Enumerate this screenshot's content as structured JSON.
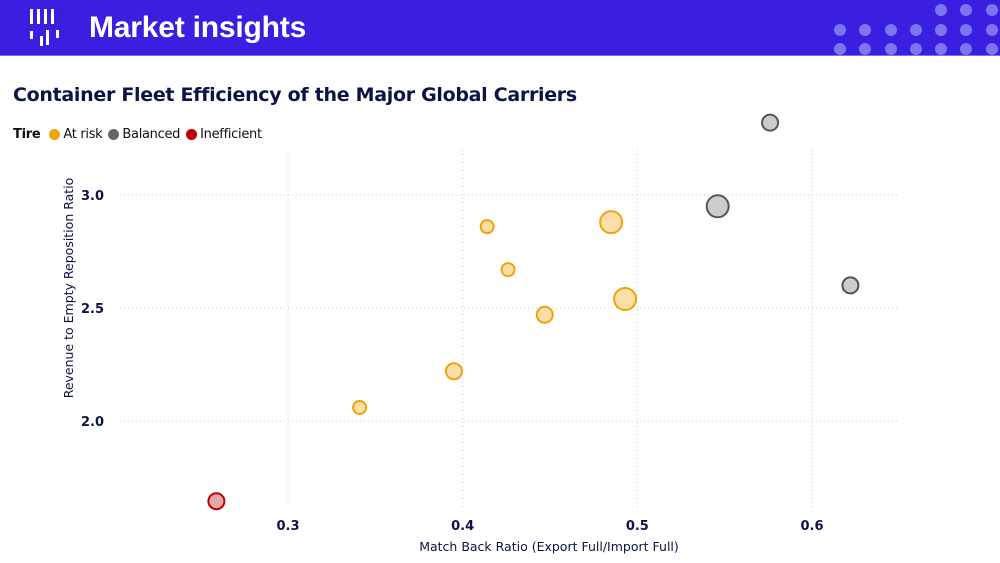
{
  "header": {
    "title": "Market insights",
    "logo_icon": "bar-chart-logo-icon",
    "background_color": "#3a1fe0"
  },
  "chart_data": {
    "type": "scatter",
    "title": "Container Fleet Efficiency of the Major Global Carriers",
    "xlabel": "Match Back Ratio (Export Full/Import Full)",
    "ylabel": "Revenue to Empty Reposition Ratio",
    "xlim": [
      0.2,
      0.65
    ],
    "ylim": [
      1.55,
      3.35
    ],
    "xticks": [
      "0.3",
      "0.4",
      "0.5",
      "0.6"
    ],
    "xtick_values": [
      0.3,
      0.4,
      0.5,
      0.6
    ],
    "yticks": [
      "2.0",
      "2.5",
      "3.0"
    ],
    "ytick_values": [
      2.0,
      2.5,
      3.0
    ],
    "grid": true,
    "legend": {
      "title": "Tire",
      "placement": "top-left",
      "entries": [
        {
          "name": "At risk",
          "color": "#f0a30a"
        },
        {
          "name": "Balanced",
          "color": "#666666"
        },
        {
          "name": "Inefficient",
          "color": "#c00000"
        }
      ]
    },
    "series": [
      {
        "name": "At risk",
        "stroke": "#f0a30a",
        "fill": "#fadfa8",
        "points": [
          {
            "x": 0.341,
            "y": 2.06,
            "size": 1
          },
          {
            "x": 0.395,
            "y": 2.22,
            "size": 2
          },
          {
            "x": 0.414,
            "y": 2.86,
            "size": 1
          },
          {
            "x": 0.426,
            "y": 2.67,
            "size": 1
          },
          {
            "x": 0.447,
            "y": 2.47,
            "size": 2
          },
          {
            "x": 0.485,
            "y": 2.88,
            "size": 4
          },
          {
            "x": 0.493,
            "y": 2.54,
            "size": 4
          }
        ]
      },
      {
        "name": "Balanced",
        "stroke": "#555555",
        "fill": "#cccccc",
        "points": [
          {
            "x": 0.546,
            "y": 2.95,
            "size": 4
          },
          {
            "x": 0.576,
            "y": 3.32,
            "size": 2
          },
          {
            "x": 0.622,
            "y": 2.6,
            "size": 2
          }
        ]
      },
      {
        "name": "Inefficient",
        "stroke": "#c00000",
        "fill": "#e8a6ab",
        "points": [
          {
            "x": 0.259,
            "y": 1.645,
            "size": 2
          }
        ]
      }
    ]
  }
}
